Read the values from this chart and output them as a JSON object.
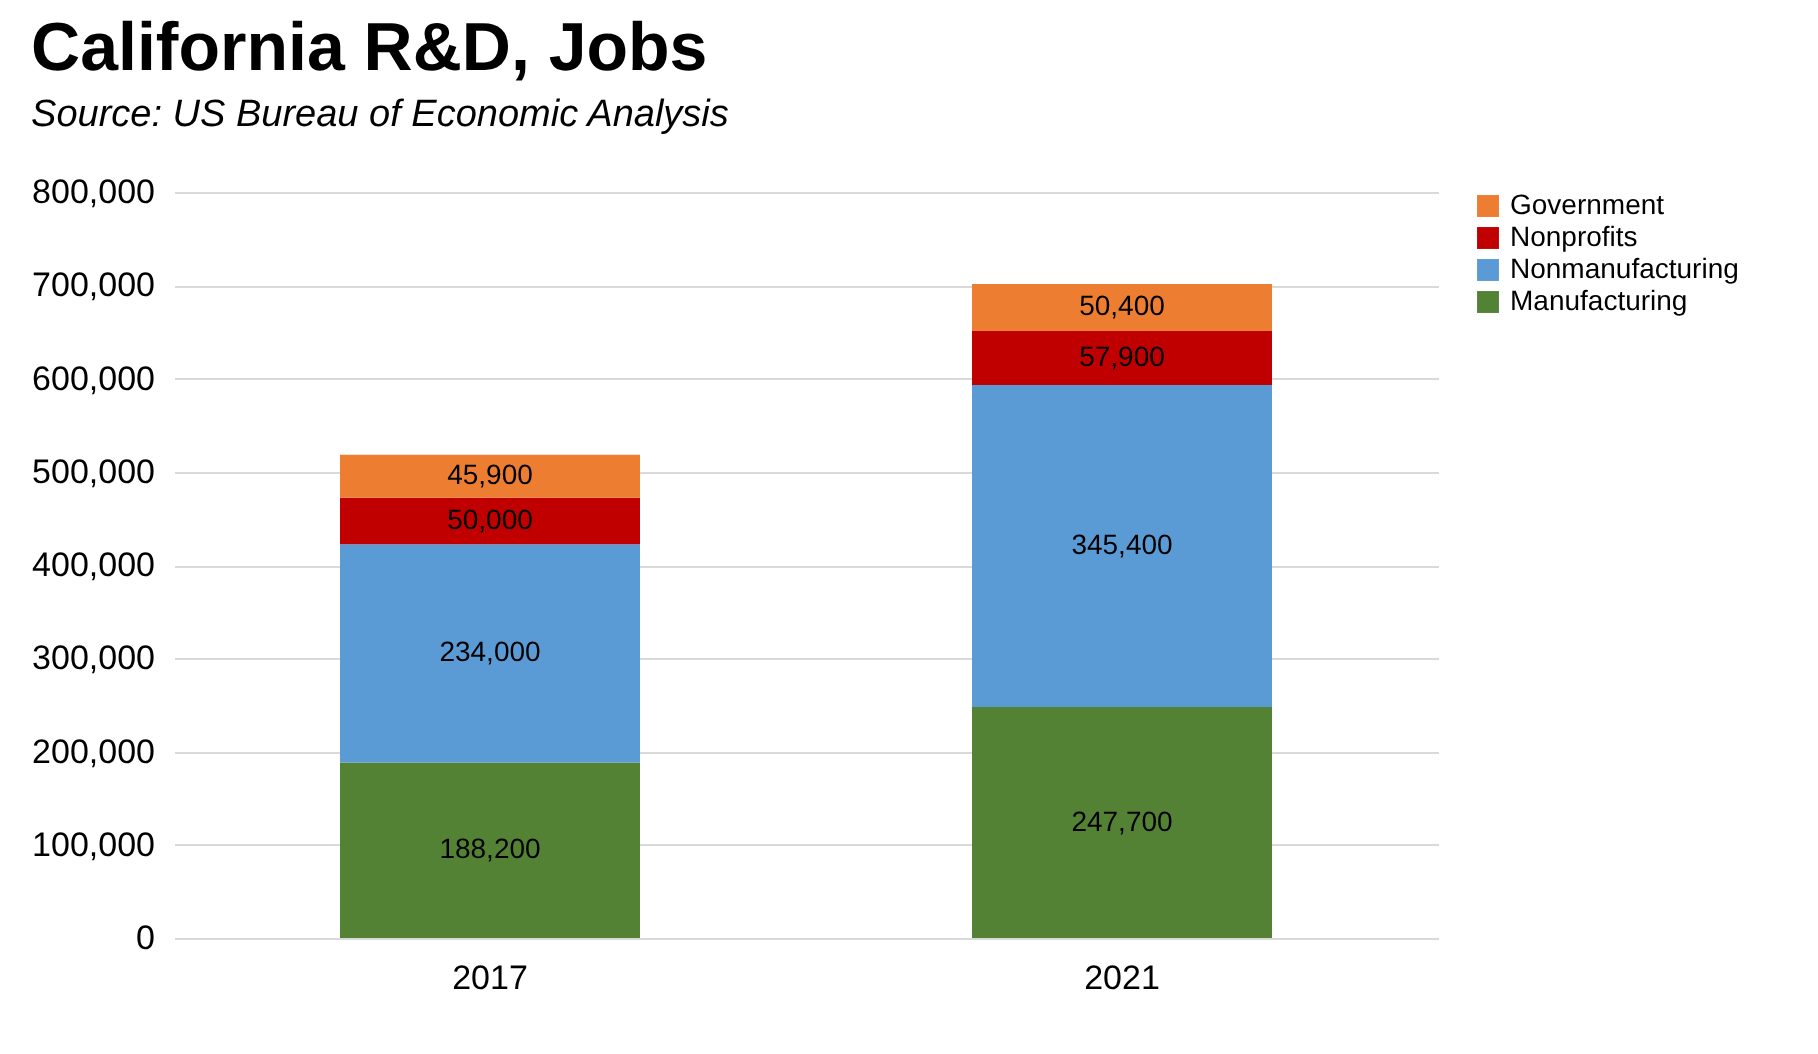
{
  "chart_data": {
    "type": "bar",
    "title": "California R&D, Jobs",
    "annotations": [
      "Source:  US Bureau of Economic Analysis"
    ],
    "categories": [
      "2017",
      "2021"
    ],
    "stacked": true,
    "series": [
      {
        "name": "Manufacturing",
        "color": "#548235",
        "values": [
          188200,
          247700
        ],
        "value_labels": [
          "188,200",
          "247,700"
        ]
      },
      {
        "name": "Nonmanufacturing",
        "color": "#5b9bd5",
        "values": [
          234000,
          345400
        ],
        "value_labels": [
          "234,000",
          "345,400"
        ]
      },
      {
        "name": "Nonprofits",
        "color": "#c00000",
        "values": [
          50000,
          57900
        ],
        "value_labels": [
          "50,000",
          "57,900"
        ]
      },
      {
        "name": "Government",
        "color": "#ed7d31",
        "values": [
          45900,
          50400
        ],
        "value_labels": [
          "45,900",
          "50,400"
        ]
      }
    ],
    "ylim": [
      0,
      800000
    ],
    "yticks": [
      0,
      {
        "value": 100000,
        "label": "100,000"
      },
      {
        "value": 200000,
        "label": "200,000"
      },
      {
        "value": 300000,
        "label": "300,000"
      },
      {
        "value": 400000,
        "label": "400,000"
      },
      {
        "value": 500000,
        "label": "500,000"
      },
      {
        "value": 600000,
        "label": "600,000"
      },
      {
        "value": 700000,
        "label": "700,000"
      },
      {
        "value": 800000,
        "label": "800,000"
      }
    ],
    "grid": "y",
    "legend": "right"
  }
}
